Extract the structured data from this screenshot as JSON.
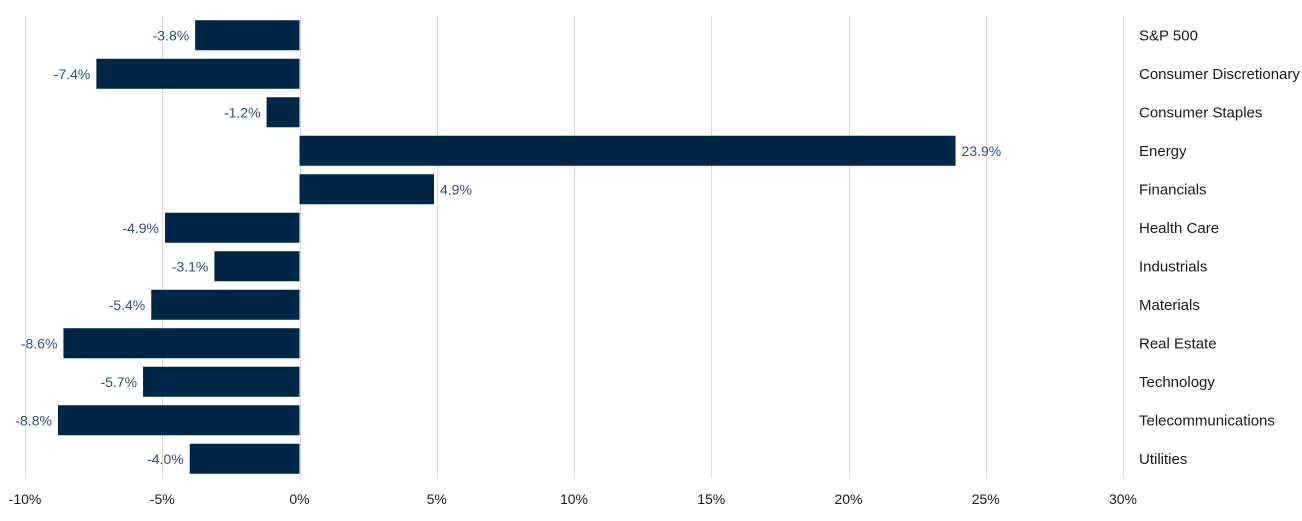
{
  "chart_data": {
    "type": "bar",
    "orientation": "horizontal",
    "title": "",
    "xlabel": "",
    "ylabel": "",
    "categories": [
      "S&P 500",
      "Consumer Discretionary",
      "Consumer Staples",
      "Energy",
      "Financials",
      "Health Care",
      "Industrials",
      "Materials",
      "Real Estate",
      "Technology",
      "Telecommunications",
      "Utilities"
    ],
    "values": [
      -3.8,
      -7.4,
      -1.2,
      23.9,
      4.9,
      -4.9,
      -3.1,
      -5.4,
      -8.6,
      -5.7,
      -8.8,
      -4.0
    ],
    "data_labels": [
      "-3.8%",
      "-7.4%",
      "-1.2%",
      "23.9%",
      "4.9%",
      "-4.9%",
      "-3.1%",
      "-5.4%",
      "-8.6%",
      "-5.7%",
      "-8.8%",
      "-4.0%"
    ],
    "xlim": [
      -10,
      30
    ],
    "x_ticks": [
      -10,
      -5,
      0,
      5,
      10,
      15,
      20,
      25,
      30
    ],
    "x_tick_labels": [
      "-10%",
      "-5%",
      "0%",
      "5%",
      "10%",
      "15%",
      "20%",
      "25%",
      "30%"
    ],
    "grid": true,
    "legend": false,
    "category_labels_position": "right",
    "colors": {
      "bar": "#002747",
      "data_label": "#2f4f7f",
      "grid": "#d9d9d9",
      "text": "#1a1a1a"
    }
  }
}
